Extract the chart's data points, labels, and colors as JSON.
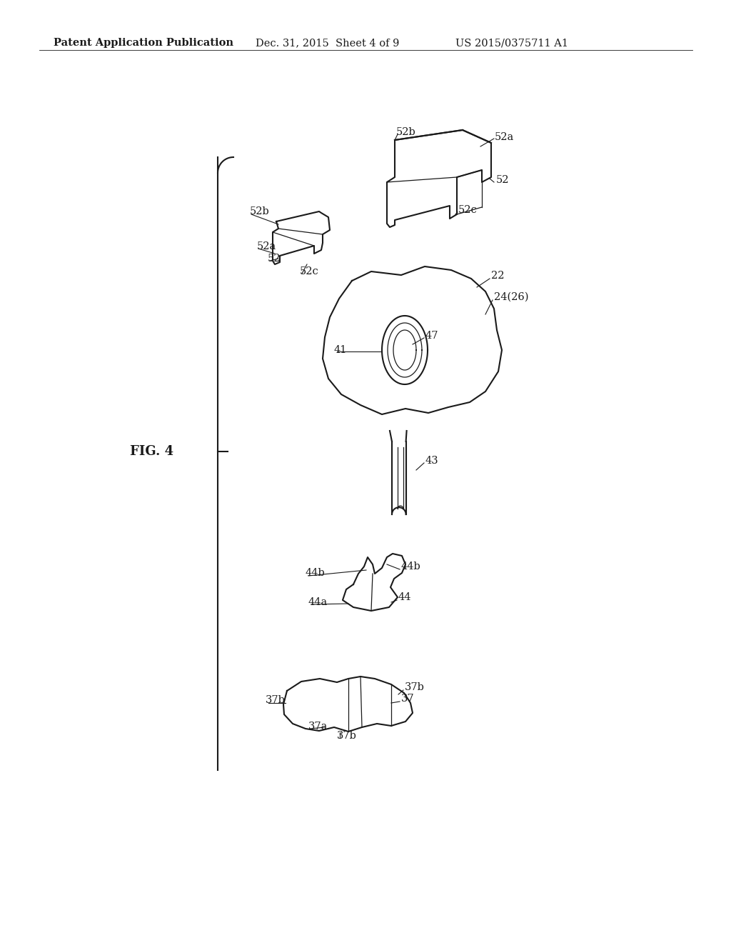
{
  "header_left": "Patent Application Publication",
  "header_mid": "Dec. 31, 2015  Sheet 4 of 9",
  "header_right": "US 2015/0375711 A1",
  "fig_label": "FIG. 4",
  "background_color": "#ffffff",
  "line_color": "#1a1a1a",
  "text_color": "#1a1a1a",
  "header_fontsize": 10.5,
  "fig_label_fontsize": 13,
  "label_fontsize": 10.5,
  "lw_main": 1.5,
  "lw_thin": 0.9,
  "lw_header": 0.6
}
